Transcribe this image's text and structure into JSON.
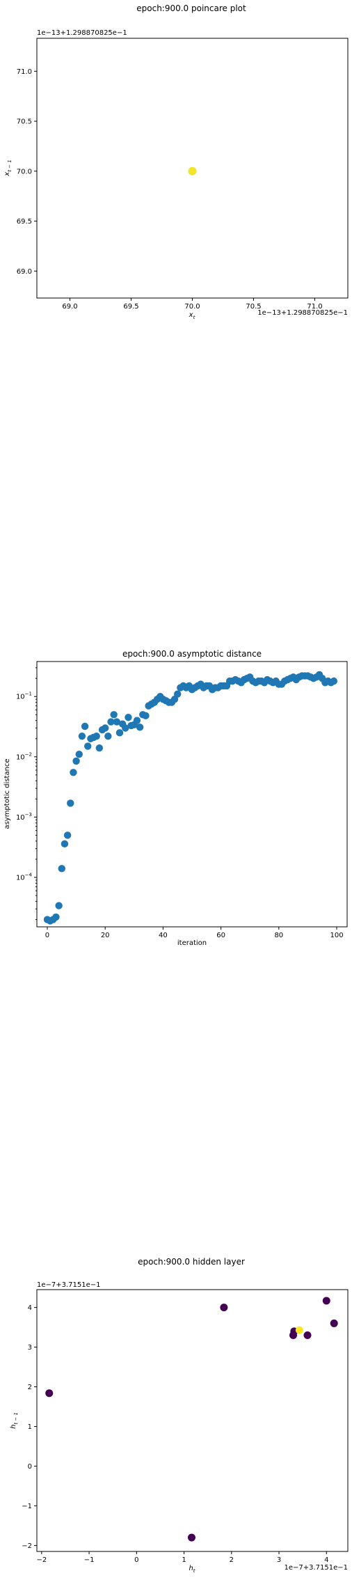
{
  "colors": {
    "poincare_point": "#f2e52a",
    "asymptotic_points": "#1f77b4",
    "hidden_purple": "#440154",
    "hidden_yellow": "#fde725"
  },
  "chart_data": [
    {
      "type": "scatter",
      "title": "epoch:900.0 poincare plot",
      "xlabel": "x_t",
      "ylabel": "x_{t-1}",
      "xlabel_main": "x",
      "xlabel_sub": "t",
      "ylabel_main": "x",
      "ylabel_sub": "t − 1",
      "x_offset_text": "1e−13+1.298870825e−1",
      "y_offset_text": "1e−13+1.298870825e−1",
      "xlim": [
        68.73,
        71.27
      ],
      "ylim": [
        68.73,
        71.33
      ],
      "xticks": [
        69.0,
        69.5,
        70.0,
        70.5,
        71.0
      ],
      "yticks": [
        69.0,
        69.5,
        70.0,
        70.5,
        71.0
      ],
      "xtick_labels": [
        "69.0",
        "69.5",
        "70.0",
        "70.5",
        "71.0"
      ],
      "ytick_labels": [
        "69.0",
        "69.5",
        "70.0",
        "70.5",
        "71.0"
      ],
      "points": [
        {
          "x": 70.0,
          "y": 70.0
        }
      ]
    },
    {
      "type": "scatter",
      "title": "epoch:900.0 asymptotic distance",
      "xlabel": "iteration",
      "ylabel": "asymptotic distance",
      "yscale": "log",
      "xlim": [
        -3.6,
        103.6
      ],
      "ylim_log10": [
        -4.82,
        -0.42
      ],
      "xticks": [
        0,
        20,
        40,
        60,
        80,
        100
      ],
      "xtick_labels": [
        "0",
        "20",
        "40",
        "60",
        "80",
        "100"
      ],
      "ytick_exponents": [
        -4,
        -3,
        -2,
        -1
      ],
      "ytick_labels": [
        "10",
        "10",
        "10",
        "10"
      ],
      "ytick_label_exponents": [
        "−4",
        "−3",
        "−2",
        "−1"
      ],
      "x": [
        0,
        1,
        2,
        3,
        4,
        5,
        6,
        7,
        8,
        9,
        10,
        11,
        12,
        13,
        14,
        15,
        16,
        17,
        18,
        19,
        20,
        21,
        22,
        23,
        24,
        25,
        26,
        27,
        28,
        29,
        30,
        31,
        32,
        33,
        34,
        35,
        36,
        37,
        38,
        39,
        40,
        41,
        42,
        43,
        44,
        45,
        46,
        47,
        48,
        49,
        50,
        51,
        52,
        53,
        54,
        55,
        56,
        57,
        58,
        59,
        60,
        61,
        62,
        63,
        64,
        65,
        66,
        67,
        68,
        69,
        70,
        71,
        72,
        73,
        74,
        75,
        76,
        77,
        78,
        79,
        80,
        81,
        82,
        83,
        84,
        85,
        86,
        87,
        88,
        89,
        90,
        91,
        92,
        93,
        94,
        95,
        96,
        97,
        98,
        99
      ],
      "y": [
        2e-05,
        1.9e-05,
        2e-05,
        2.2e-05,
        3.4e-05,
        0.00014,
        0.00036,
        0.0005,
        0.0017,
        0.0055,
        0.0085,
        0.011,
        0.022,
        0.032,
        0.015,
        0.02,
        0.021,
        0.022,
        0.014,
        0.028,
        0.03,
        0.022,
        0.038,
        0.05,
        0.038,
        0.025,
        0.035,
        0.03,
        0.045,
        0.033,
        0.034,
        0.04,
        0.031,
        0.05,
        0.048,
        0.07,
        0.075,
        0.08,
        0.09,
        0.1,
        0.09,
        0.085,
        0.08,
        0.08,
        0.09,
        0.11,
        0.14,
        0.15,
        0.14,
        0.15,
        0.13,
        0.14,
        0.15,
        0.16,
        0.14,
        0.15,
        0.15,
        0.13,
        0.14,
        0.14,
        0.15,
        0.15,
        0.15,
        0.18,
        0.18,
        0.19,
        0.18,
        0.17,
        0.19,
        0.2,
        0.21,
        0.18,
        0.17,
        0.18,
        0.18,
        0.17,
        0.19,
        0.18,
        0.17,
        0.18,
        0.16,
        0.16,
        0.18,
        0.19,
        0.2,
        0.21,
        0.19,
        0.21,
        0.22,
        0.22,
        0.22,
        0.21,
        0.2,
        0.21,
        0.23,
        0.2,
        0.17,
        0.18,
        0.17,
        0.18
      ]
    },
    {
      "type": "scatter",
      "title": "epoch:900.0 hidden layer",
      "xlabel": "h_t",
      "ylabel": "h_{t-1}",
      "xlabel_main": "h",
      "xlabel_sub": "t",
      "ylabel_main": "h",
      "ylabel_sub": "t − 1",
      "x_offset_text": "1e−7+3.7151e−1",
      "y_offset_text": "1e−7+3.7151e−1",
      "xlim": [
        -2.1,
        4.45
      ],
      "ylim": [
        -2.15,
        4.45
      ],
      "xticks": [
        -2,
        -1,
        0,
        1,
        2,
        3,
        4
      ],
      "yticks": [
        -2,
        -1,
        0,
        1,
        2,
        3,
        4
      ],
      "xtick_labels": [
        "−2",
        "−1",
        "0",
        "1",
        "2",
        "3",
        "4"
      ],
      "ytick_labels": [
        "−2",
        "−1",
        "0",
        "1",
        "2",
        "3",
        "4"
      ],
      "points": [
        {
          "x": -1.84,
          "y": 1.84,
          "color": "purple"
        },
        {
          "x": 1.16,
          "y": -1.8,
          "color": "purple"
        },
        {
          "x": 1.84,
          "y": 4.0,
          "color": "purple"
        },
        {
          "x": 3.3,
          "y": 3.3,
          "color": "purple"
        },
        {
          "x": 3.32,
          "y": 3.4,
          "color": "purple"
        },
        {
          "x": 3.6,
          "y": 3.3,
          "color": "purple"
        },
        {
          "x": 4.0,
          "y": 4.17,
          "color": "purple"
        },
        {
          "x": 4.16,
          "y": 3.6,
          "color": "purple"
        },
        {
          "x": 3.43,
          "y": 3.43,
          "color": "yellow"
        }
      ]
    }
  ]
}
